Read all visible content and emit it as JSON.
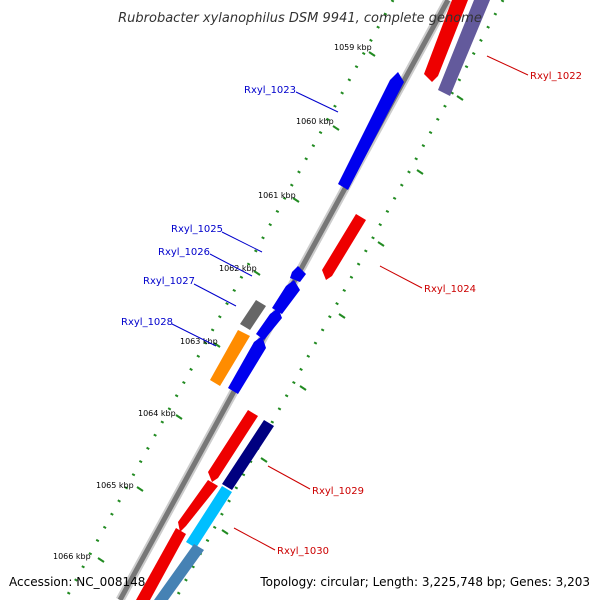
{
  "title": "Rubrobacter xylanophilus DSM 9941, complete genome",
  "accession": "Accession: NC_008148",
  "topology": "Topology: circular; Length: 3,225,748 bp; Genes: 3,203",
  "colors": {
    "plus_gene": "#0000ee",
    "minus_gene": "#ee0000",
    "plus_label": "#0000cc",
    "minus_label": "#cc0000",
    "backbone": "#888888",
    "tick": "#228b22",
    "pseudo": "#666666",
    "orange": "#ff8c00",
    "navy": "#000080",
    "slate": "#483d8b",
    "cyan": "#00bfff"
  },
  "kbp_ticks": [
    {
      "label": "1059 kbp"
    },
    {
      "label": "1060 kbp"
    },
    {
      "label": "1061 kbp"
    },
    {
      "label": "1062 kbp"
    },
    {
      "label": "1063 kbp"
    },
    {
      "label": "1064 kbp"
    },
    {
      "label": "1065 kbp"
    },
    {
      "label": "1066 kbp"
    }
  ],
  "gene_labels": [
    {
      "name": "Rxyl_1022",
      "strand": "minus"
    },
    {
      "name": "Rxyl_1023",
      "strand": "plus"
    },
    {
      "name": "Rxyl_1024",
      "strand": "minus"
    },
    {
      "name": "Rxyl_1025",
      "strand": "plus"
    },
    {
      "name": "Rxyl_1026",
      "strand": "plus"
    },
    {
      "name": "Rxyl_1027",
      "strand": "plus"
    },
    {
      "name": "Rxyl_1028",
      "strand": "plus"
    },
    {
      "name": "Rxyl_1029",
      "strand": "minus"
    },
    {
      "name": "Rxyl_1030",
      "strand": "minus"
    }
  ]
}
